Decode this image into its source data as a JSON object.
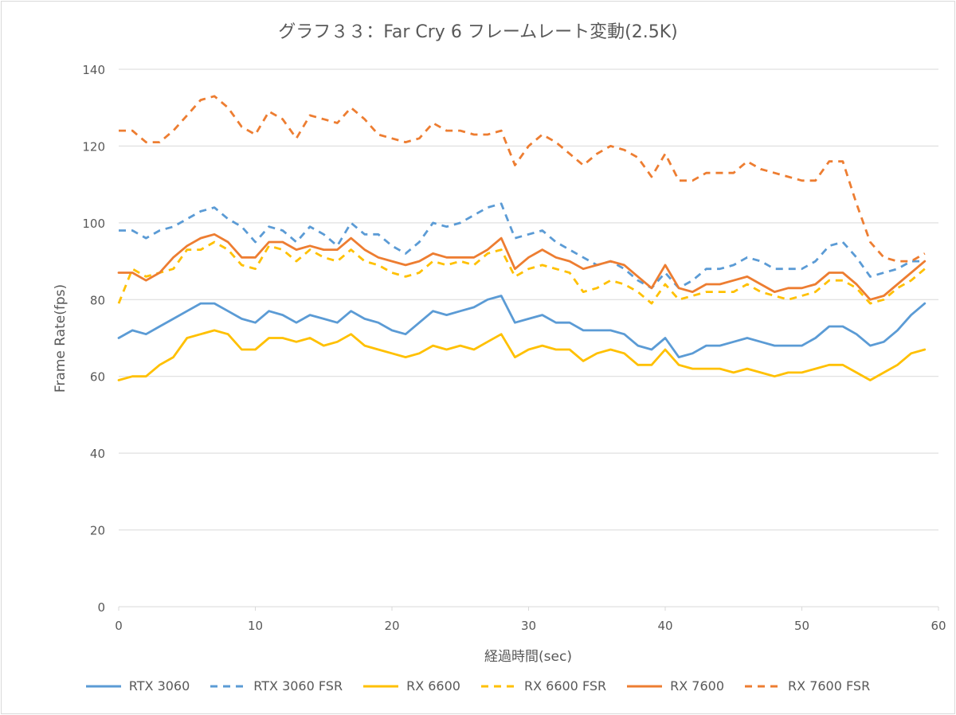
{
  "chart_data": {
    "type": "line",
    "title": "グラフ３３：Far Cry 6 フレームレート変動(2.5K)",
    "xlabel": "経過時間(sec)",
    "ylabel": "Frame Rate(fps)",
    "xlim": [
      0,
      60
    ],
    "ylim": [
      0,
      140
    ],
    "xticks": [
      0,
      10,
      20,
      30,
      40,
      50,
      60
    ],
    "yticks": [
      0,
      20,
      40,
      60,
      80,
      100,
      120,
      140
    ],
    "grid": "horizontal",
    "legend_position": "bottom",
    "x": [
      0,
      1,
      2,
      3,
      4,
      5,
      6,
      7,
      8,
      9,
      10,
      11,
      12,
      13,
      14,
      15,
      16,
      17,
      18,
      19,
      20,
      21,
      22,
      23,
      24,
      25,
      26,
      27,
      28,
      29,
      30,
      31,
      32,
      33,
      34,
      35,
      36,
      37,
      38,
      39,
      40,
      41,
      42,
      43,
      44,
      45,
      46,
      47,
      48,
      49,
      50,
      51,
      52,
      53,
      54,
      55,
      56,
      57,
      58,
      59
    ],
    "series": [
      {
        "name": "RTX 3060",
        "color": "#5b9bd5",
        "dash": "solid",
        "values": [
          70,
          72,
          71,
          73,
          75,
          77,
          79,
          79,
          77,
          75,
          74,
          77,
          76,
          74,
          76,
          75,
          74,
          77,
          75,
          74,
          72,
          71,
          74,
          77,
          76,
          77,
          78,
          80,
          81,
          74,
          75,
          76,
          74,
          74,
          72,
          72,
          72,
          71,
          68,
          67,
          70,
          65,
          66,
          68,
          68,
          69,
          70,
          69,
          68,
          68,
          68,
          70,
          73,
          73,
          71,
          68,
          69,
          72,
          76,
          79
        ]
      },
      {
        "name": "RTX 3060 FSR",
        "color": "#5b9bd5",
        "dash": "dashed",
        "values": [
          98,
          98,
          96,
          98,
          99,
          101,
          103,
          104,
          101,
          99,
          95,
          99,
          98,
          95,
          99,
          97,
          94,
          100,
          97,
          97,
          94,
          92,
          95,
          100,
          99,
          100,
          102,
          104,
          105,
          96,
          97,
          98,
          95,
          93,
          91,
          89,
          90,
          88,
          85,
          83,
          87,
          83,
          85,
          88,
          88,
          89,
          91,
          90,
          88,
          88,
          88,
          90,
          94,
          95,
          91,
          86,
          87,
          88,
          90,
          90
        ]
      },
      {
        "name": "RX 6600",
        "color": "#ffc000",
        "dash": "solid",
        "values": [
          59,
          60,
          60,
          63,
          65,
          70,
          71,
          72,
          71,
          67,
          67,
          70,
          70,
          69,
          70,
          68,
          69,
          71,
          68,
          67,
          66,
          65,
          66,
          68,
          67,
          68,
          67,
          69,
          71,
          65,
          67,
          68,
          67,
          67,
          64,
          66,
          67,
          66,
          63,
          63,
          67,
          63,
          62,
          62,
          62,
          61,
          62,
          61,
          60,
          61,
          61,
          62,
          63,
          63,
          61,
          59,
          61,
          63,
          66,
          67
        ]
      },
      {
        "name": "RX 6600 FSR",
        "color": "#ffc000",
        "dash": "dashed",
        "values": [
          79,
          88,
          86,
          87,
          88,
          93,
          93,
          95,
          93,
          89,
          88,
          94,
          93,
          90,
          93,
          91,
          90,
          93,
          90,
          89,
          87,
          86,
          87,
          90,
          89,
          90,
          89,
          92,
          93,
          86,
          88,
          89,
          88,
          87,
          82,
          83,
          85,
          84,
          82,
          79,
          84,
          80,
          81,
          82,
          82,
          82,
          84,
          82,
          81,
          80,
          81,
          82,
          85,
          85,
          83,
          79,
          80,
          83,
          85,
          88
        ]
      },
      {
        "name": "RX 7600",
        "color": "#ed7d31",
        "dash": "solid",
        "values": [
          87,
          87,
          85,
          87,
          91,
          94,
          96,
          97,
          95,
          91,
          91,
          95,
          95,
          93,
          94,
          93,
          93,
          96,
          93,
          91,
          90,
          89,
          90,
          92,
          91,
          91,
          91,
          93,
          96,
          88,
          91,
          93,
          91,
          90,
          88,
          89,
          90,
          89,
          86,
          83,
          89,
          83,
          82,
          84,
          84,
          85,
          86,
          84,
          82,
          83,
          83,
          84,
          87,
          87,
          84,
          80,
          81,
          84,
          87,
          90
        ]
      },
      {
        "name": "RX 7600 FSR",
        "color": "#ed7d31",
        "dash": "dashed",
        "values": [
          124,
          124,
          121,
          121,
          124,
          128,
          132,
          133,
          130,
          125,
          123,
          129,
          127,
          122,
          128,
          127,
          126,
          130,
          127,
          123,
          122,
          121,
          122,
          126,
          124,
          124,
          123,
          123,
          124,
          115,
          120,
          123,
          121,
          118,
          115,
          118,
          120,
          119,
          117,
          112,
          118,
          111,
          111,
          113,
          113,
          113,
          116,
          114,
          113,
          112,
          111,
          111,
          116,
          116,
          105,
          95,
          91,
          90,
          90,
          92
        ]
      }
    ]
  }
}
